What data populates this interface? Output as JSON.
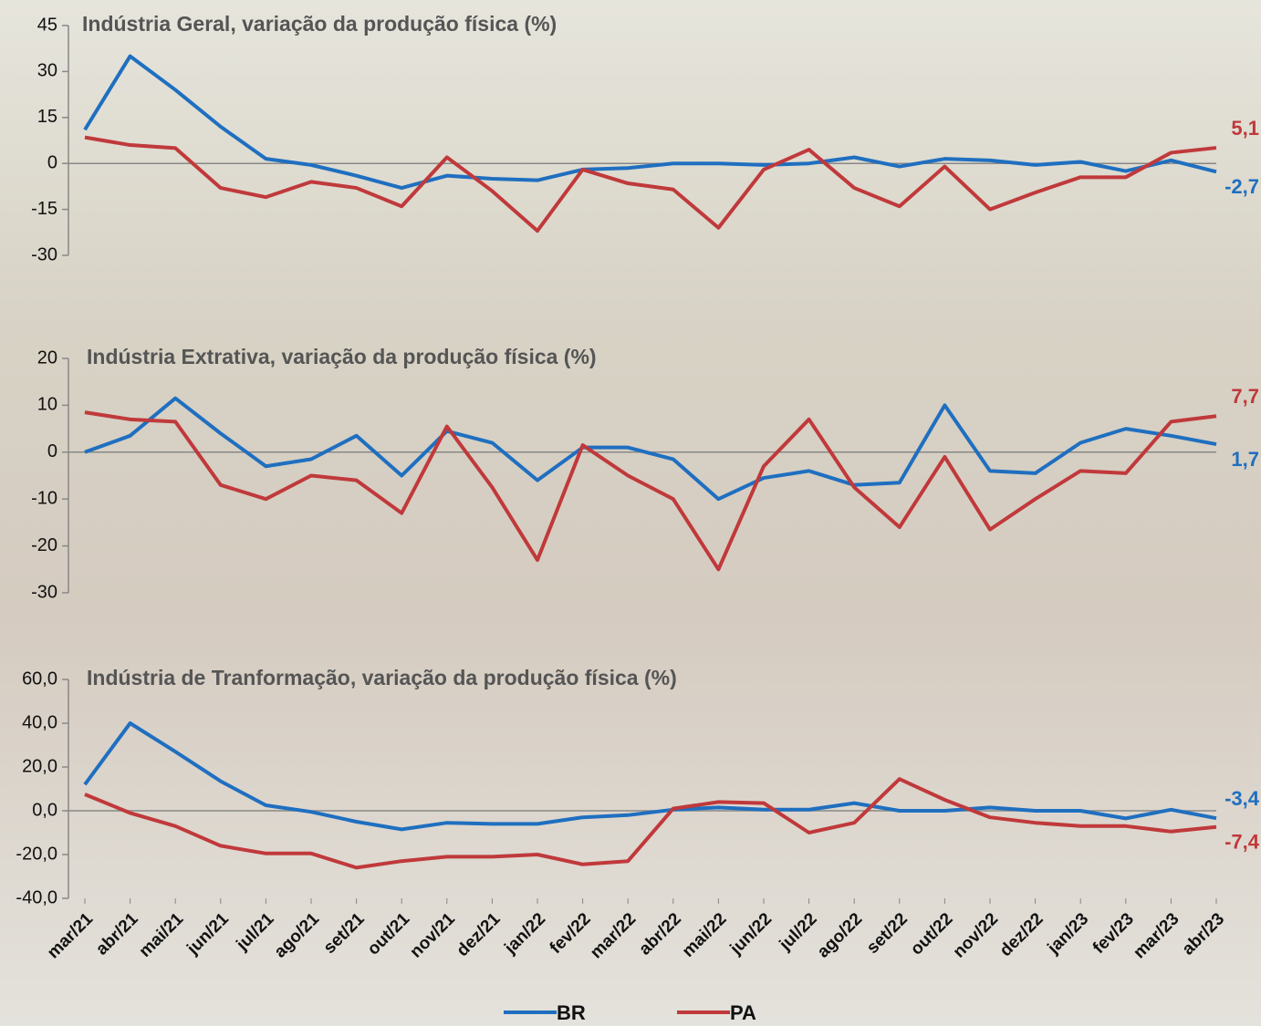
{
  "chart_data": [
    {
      "type": "line",
      "title": "Indústria Geral, variação da produção física (%)",
      "ylim": [
        -30,
        45
      ],
      "yticks": [
        -30,
        -15,
        0,
        15,
        30,
        45
      ],
      "zero_line": true,
      "series": [
        {
          "color": "#1f6fc0",
          "values": [
            11,
            35,
            24,
            12,
            1.5,
            -0.5,
            -4,
            -8,
            -4,
            -5,
            -5.5,
            -2,
            -1.5,
            0,
            0,
            -0.5,
            0,
            2,
            -1,
            1.5,
            1,
            -0.5,
            0.5,
            -2.5,
            1,
            -2.7
          ],
          "value_labels": [
            null,
            null,
            null,
            null,
            null,
            null,
            null,
            null,
            null,
            null,
            null,
            null,
            null,
            null,
            null,
            null,
            null,
            null,
            null,
            null,
            null,
            null,
            null,
            null,
            null,
            "-2,7"
          ]
        },
        {
          "color": "#c0393b",
          "values": [
            8.5,
            6,
            5,
            -8,
            -11,
            -6,
            -8,
            -14,
            2,
            -9,
            -22,
            -2,
            -6.5,
            -8.5,
            -21,
            -2,
            4.5,
            -8,
            -14,
            -1,
            -15,
            -9.5,
            -4.5,
            -4.5,
            3.5,
            5.1
          ],
          "value_labels": [
            null,
            null,
            null,
            null,
            null,
            null,
            null,
            null,
            null,
            null,
            null,
            null,
            null,
            null,
            null,
            null,
            null,
            null,
            null,
            null,
            null,
            null,
            null,
            null,
            null,
            "5,1"
          ]
        }
      ]
    },
    {
      "type": "line",
      "title": "Indústria Extrativa, variação da produção física (%)",
      "ylim": [
        -30,
        20
      ],
      "yticks": [
        -30,
        -20,
        -10,
        0,
        10,
        20
      ],
      "zero_line": true,
      "series": [
        {
          "color": "#1f6fc0",
          "values": [
            0,
            3.5,
            11.5,
            4,
            -3,
            -1.5,
            3.5,
            -5,
            4.5,
            2,
            -6,
            1,
            1,
            -1.5,
            -10,
            -5.5,
            -4,
            -7,
            -6.5,
            10,
            -4,
            -4.5,
            2,
            5,
            3.5,
            1.7
          ],
          "value_labels": [
            null,
            null,
            null,
            null,
            null,
            null,
            null,
            null,
            null,
            null,
            null,
            null,
            null,
            null,
            null,
            null,
            null,
            null,
            null,
            null,
            null,
            null,
            null,
            null,
            null,
            "1,7"
          ]
        },
        {
          "color": "#c0393b",
          "values": [
            8.5,
            7,
            6.5,
            -7,
            -10,
            -5,
            -6,
            -13,
            5.5,
            -7.5,
            -23,
            1.5,
            -5,
            -10,
            -25,
            -3,
            7,
            -7.5,
            -16,
            -1,
            -16.5,
            -10,
            -4,
            -4.5,
            6.5,
            7.7
          ],
          "value_labels": [
            null,
            null,
            null,
            null,
            null,
            null,
            null,
            null,
            null,
            null,
            null,
            null,
            null,
            null,
            null,
            null,
            null,
            null,
            null,
            null,
            null,
            null,
            null,
            null,
            null,
            "7,7"
          ]
        }
      ]
    },
    {
      "type": "line",
      "title": "Indústria de Tranformação, variação da produção física (%)",
      "ylim": [
        -40,
        60
      ],
      "yticks": [
        {
          "value": -40,
          "label": "-40,0"
        },
        {
          "value": -20,
          "label": "-20,0"
        },
        {
          "value": 0,
          "label": "0,0"
        },
        {
          "value": 20,
          "label": "20,0"
        },
        {
          "value": 40,
          "label": "40,0"
        },
        {
          "value": 60,
          "label": "60,0"
        }
      ],
      "zero_line": true,
      "categories": [
        "mar/21",
        "abr/21",
        "mai/21",
        "jun/21",
        "jul/21",
        "ago/21",
        "set/21",
        "out/21",
        "nov/21",
        "dez/21",
        "jan/22",
        "fev/22",
        "mar/22",
        "abr/22",
        "mai/22",
        "jun/22",
        "jul/22",
        "ago/22",
        "set/22",
        "out/22",
        "nov/22",
        "dez/22",
        "jan/23",
        "fev/23",
        "mar/23",
        "abr/23"
      ],
      "legend": "bottom",
      "series": [
        {
          "name": "BR",
          "color": "#1f6fc0",
          "values": [
            12,
            40,
            27,
            13.5,
            2.5,
            -0.5,
            -5,
            -8.5,
            -5.5,
            -6,
            -6,
            -3,
            -2,
            0.5,
            1.5,
            0.5,
            0.5,
            3.5,
            0,
            0,
            1.5,
            0,
            0,
            -3.5,
            0.5,
            -3.4
          ],
          "value_labels": [
            null,
            null,
            null,
            null,
            null,
            null,
            null,
            null,
            null,
            null,
            null,
            null,
            null,
            null,
            null,
            null,
            null,
            null,
            null,
            null,
            null,
            null,
            null,
            null,
            null,
            "-3,4"
          ]
        },
        {
          "name": "PA",
          "color": "#c0393b",
          "values": [
            7.5,
            -1,
            -7,
            -16,
            -19.5,
            -19.5,
            -26,
            -23,
            -21,
            -21,
            -20,
            -24.5,
            -23,
            1,
            4,
            3.5,
            -10,
            -5.5,
            14.5,
            5,
            -3,
            -5.5,
            -7,
            -7,
            -9.5,
            -7.4
          ],
          "value_labels": [
            null,
            null,
            null,
            null,
            null,
            null,
            null,
            null,
            null,
            null,
            null,
            null,
            null,
            null,
            null,
            null,
            null,
            null,
            null,
            null,
            null,
            null,
            null,
            null,
            null,
            "-7,4"
          ]
        }
      ]
    }
  ]
}
